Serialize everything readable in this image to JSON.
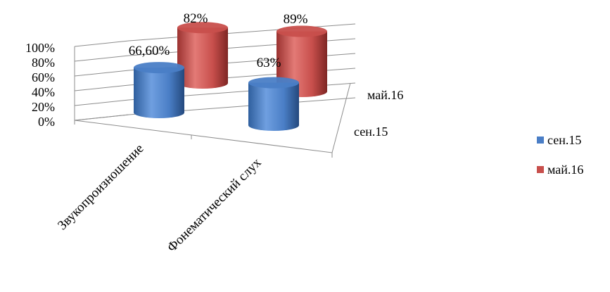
{
  "chart_data": {
    "type": "bar",
    "categories": [
      "Звукопроизношение",
      "Фонематический слух"
    ],
    "series": [
      {
        "name": "сен.15",
        "values": [
          66.6,
          63
        ],
        "labels": [
          "66,60%",
          "63%"
        ],
        "color": "#4a7ec6"
      },
      {
        "name": "май.16",
        "values": [
          82,
          89
        ],
        "labels": [
          "82%",
          "89%"
        ],
        "color": "#c84f4c"
      }
    ],
    "y_ticks": [
      "0%",
      "20%",
      "40%",
      "60%",
      "80%",
      "100%"
    ],
    "ylim": [
      0,
      100
    ],
    "depth_labels": [
      "май.16",
      "сен.15"
    ],
    "grid": true,
    "legend": "right",
    "style": "3d-cylinder"
  }
}
